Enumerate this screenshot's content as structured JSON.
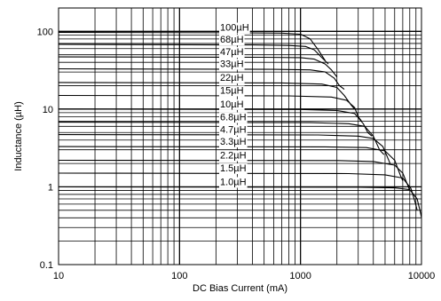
{
  "chart_data": {
    "type": "line",
    "xlabel": "DC Bias Current (mA)",
    "ylabel": "Inductance (µH)",
    "xscale": "log",
    "yscale": "log",
    "xlim": [
      10,
      10000
    ],
    "ylim": [
      0.1,
      200
    ],
    "x_ticks": [
      {
        "value": 10,
        "label": "10"
      },
      {
        "value": 100,
        "label": "100"
      },
      {
        "value": 1000,
        "label": "1000"
      },
      {
        "value": 10000,
        "label": "10000"
      }
    ],
    "y_ticks": [
      {
        "value": 0.1,
        "label": "0.1"
      },
      {
        "value": 1,
        "label": "1"
      },
      {
        "value": 10,
        "label": "10"
      },
      {
        "value": 100,
        "label": "100"
      }
    ],
    "grid": true,
    "legend": "none",
    "series": [
      {
        "name": "100µH",
        "points": [
          [
            10,
            97
          ],
          [
            300,
            96
          ],
          [
            700,
            95
          ],
          [
            1000,
            92
          ],
          [
            1200,
            80
          ],
          [
            1400,
            58
          ],
          [
            1600,
            42
          ]
        ]
      },
      {
        "name": "68µH",
        "points": [
          [
            10,
            68
          ],
          [
            400,
            67
          ],
          [
            800,
            66
          ],
          [
            1100,
            64
          ],
          [
            1300,
            58
          ],
          [
            1500,
            46
          ],
          [
            1700,
            38
          ]
        ]
      },
      {
        "name": "47µH",
        "points": [
          [
            10,
            47
          ],
          [
            500,
            46.5
          ],
          [
            1000,
            46
          ],
          [
            1300,
            44
          ],
          [
            1600,
            38
          ],
          [
            1800,
            32
          ],
          [
            2000,
            26
          ]
        ]
      },
      {
        "name": "33µH",
        "points": [
          [
            10,
            33
          ],
          [
            600,
            32.5
          ],
          [
            1200,
            32
          ],
          [
            1600,
            30
          ],
          [
            1900,
            25
          ],
          [
            2100,
            20
          ],
          [
            2300,
            18
          ]
        ]
      },
      {
        "name": "22µH",
        "points": [
          [
            10,
            22
          ],
          [
            700,
            21.7
          ],
          [
            1500,
            21
          ],
          [
            2000,
            19
          ],
          [
            2300,
            15
          ],
          [
            2600,
            11.5
          ],
          [
            2800,
            10
          ]
        ]
      },
      {
        "name": "15µH",
        "points": [
          [
            10,
            15
          ],
          [
            800,
            14.8
          ],
          [
            1800,
            14.3
          ],
          [
            2400,
            13
          ],
          [
            2800,
            10.5
          ],
          [
            3000,
            8
          ],
          [
            3200,
            7
          ]
        ]
      },
      {
        "name": "10µH",
        "points": [
          [
            10,
            10
          ],
          [
            1000,
            9.9
          ],
          [
            2000,
            9.6
          ],
          [
            2800,
            8.8
          ],
          [
            3300,
            6.5
          ],
          [
            3600,
            5
          ],
          [
            3900,
            4.5
          ]
        ]
      },
      {
        "name": "6.8µH",
        "points": [
          [
            10,
            6.8
          ],
          [
            1200,
            6.7
          ],
          [
            2500,
            6.5
          ],
          [
            3400,
            6
          ],
          [
            4000,
            4.5
          ],
          [
            4500,
            3
          ],
          [
            4900,
            2.6
          ]
        ]
      },
      {
        "name": "4.7µH",
        "points": [
          [
            10,
            4.7
          ],
          [
            1400,
            4.65
          ],
          [
            3000,
            4.5
          ],
          [
            4000,
            4.2
          ],
          [
            4800,
            3.3
          ],
          [
            5300,
            2.3
          ],
          [
            5500,
            2
          ]
        ]
      },
      {
        "name": "3.3µH",
        "points": [
          [
            10,
            3.3
          ],
          [
            1600,
            3.27
          ],
          [
            3500,
            3.2
          ],
          [
            5000,
            2.9
          ],
          [
            6000,
            2.2
          ],
          [
            6700,
            1.4
          ],
          [
            7000,
            1.2
          ]
        ]
      },
      {
        "name": "2.2µH",
        "points": [
          [
            10,
            2.2
          ],
          [
            2000,
            2.18
          ],
          [
            4000,
            2.12
          ],
          [
            6000,
            1.9
          ],
          [
            7000,
            1.5
          ],
          [
            7700,
            1.05
          ],
          [
            8000,
            0.9
          ]
        ]
      },
      {
        "name": "1.5µH",
        "points": [
          [
            10,
            1.5
          ],
          [
            2500,
            1.48
          ],
          [
            5000,
            1.43
          ],
          [
            7000,
            1.3
          ],
          [
            8200,
            0.95
          ],
          [
            8900,
            0.62
          ],
          [
            9200,
            0.5
          ]
        ]
      },
      {
        "name": "1.0µH",
        "points": [
          [
            10,
            1.0
          ],
          [
            3000,
            0.99
          ],
          [
            6000,
            0.97
          ],
          [
            8000,
            0.92
          ],
          [
            9200,
            0.7
          ],
          [
            9800,
            0.47
          ],
          [
            10000,
            0.4
          ]
        ]
      }
    ]
  }
}
